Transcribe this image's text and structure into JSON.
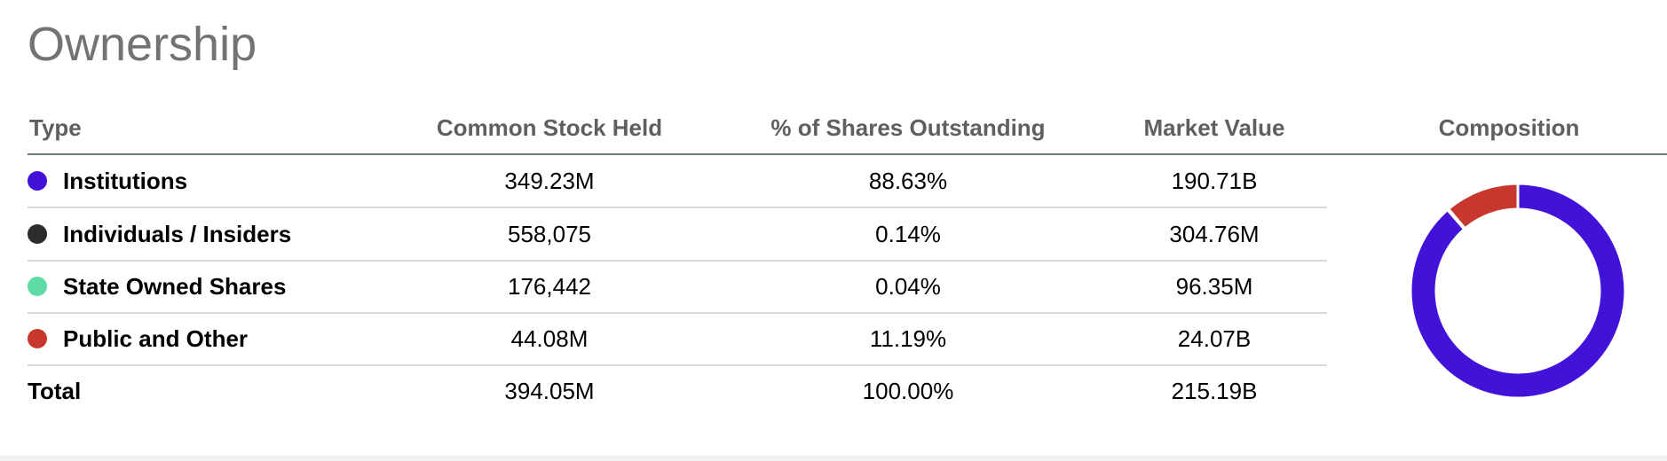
{
  "title": "Ownership",
  "table": {
    "headers": {
      "type": "Type",
      "common": "Common Stock Held",
      "pct": "% of Shares Outstanding",
      "value": "Market Value",
      "composition": "Composition"
    },
    "rows": [
      {
        "label": "Institutions",
        "color": "#4212d8",
        "common": "349.23M",
        "pct": "88.63%",
        "value": "190.71B"
      },
      {
        "label": "Individuals / Insiders",
        "color": "#2c2c2c",
        "common": "558,075",
        "pct": "0.14%",
        "value": "304.76M"
      },
      {
        "label": "State Owned Shares",
        "color": "#5fdba6",
        "common": "176,442",
        "pct": "0.04%",
        "value": "96.35M"
      },
      {
        "label": "Public and Other",
        "color": "#c8372d",
        "common": "44.08M",
        "pct": "11.19%",
        "value": "24.07B"
      }
    ],
    "total": {
      "label": "Total",
      "common": "394.05M",
      "pct": "100.00%",
      "value": "215.19B"
    }
  },
  "chart_data": {
    "type": "pie",
    "donut": true,
    "title": "Composition",
    "categories": [
      "Institutions",
      "Individuals / Insiders",
      "State Owned Shares",
      "Public and Other"
    ],
    "values": [
      88.63,
      0.14,
      0.04,
      11.19
    ],
    "colors": [
      "#4212d8",
      "#2c2c2c",
      "#5fdba6",
      "#c8372d"
    ],
    "unit": "%"
  }
}
